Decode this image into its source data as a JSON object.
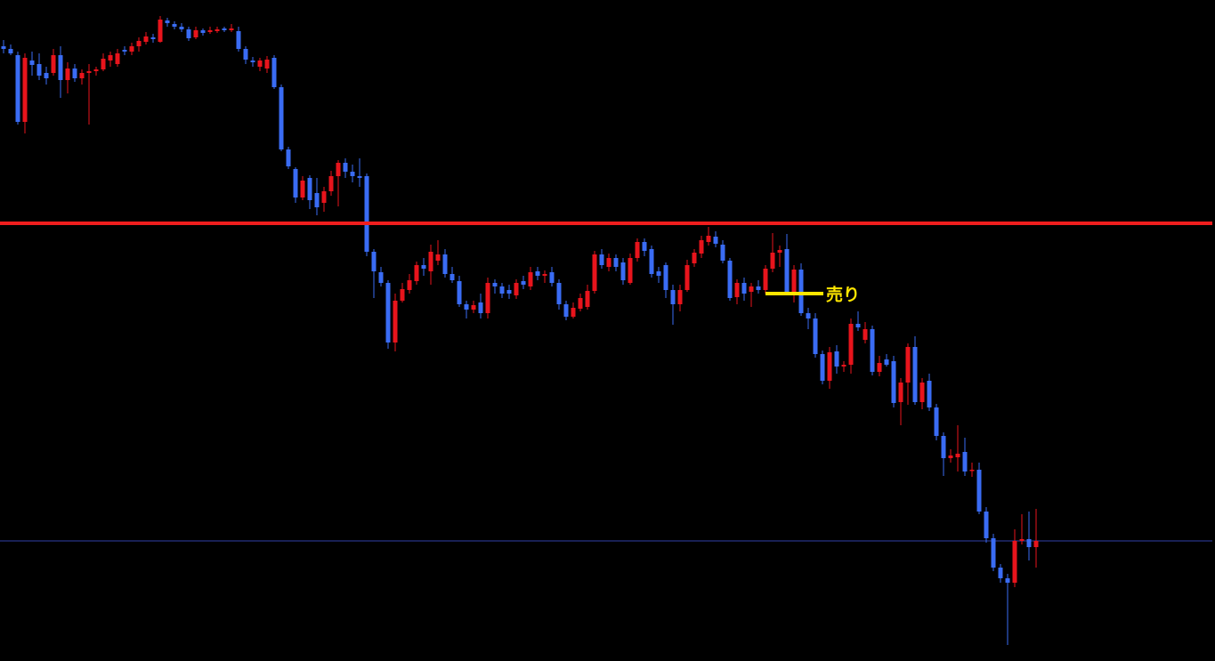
{
  "chart_data": {
    "type": "candlestick",
    "up_color": "#e8141c",
    "down_color": "#3a6cf4",
    "ylim": [
      7,
      750
    ],
    "open": [
      698,
      695,
      688,
      613,
      682,
      678,
      668,
      668,
      688,
      660,
      673,
      662,
      668,
      670,
      672,
      682,
      678,
      694,
      692,
      698,
      703,
      708,
      703,
      727,
      723,
      720,
      717,
      708,
      716,
      714,
      715,
      718,
      716,
      715,
      695,
      682,
      675,
      673,
      685,
      652,
      582,
      560,
      528,
      550,
      533,
      522,
      535,
      552,
      567,
      557,
      552,
      552,
      467,
      444,
      432,
      365,
      412,
      424,
      434,
      452,
      445,
      457,
      464,
      442,
      434,
      408,
      402,
      410,
      398,
      432,
      428,
      424,
      418,
      434,
      428,
      445,
      440,
      444,
      432,
      408,
      394,
      403,
      405,
      423,
      464,
      450,
      460,
      455,
      432,
      460,
      478,
      470,
      445,
      452,
      424,
      408,
      424,
      454,
      465,
      478,
      484,
      475,
      457,
      416,
      432,
      422,
      428,
      424,
      448,
      466,
      470,
      422,
      447,
      398,
      392,
      352,
      322,
      355,
      338,
      340,
      386,
      368,
      380,
      332,
      346,
      344,
      298,
      320,
      360,
      298,
      322,
      292,
      260,
      235,
      236,
      242,
      222,
      222,
      175,
      145,
      112,
      100,
      95,
      142,
      144,
      135
    ],
    "high": [
      705,
      700,
      692,
      690,
      692,
      690,
      675,
      695,
      698,
      680,
      678,
      672,
      678,
      675,
      690,
      692,
      695,
      698,
      702,
      708,
      714,
      712,
      732,
      730,
      726,
      724,
      720,
      720,
      718,
      720,
      720,
      720,
      723,
      720,
      698,
      686,
      685,
      687,
      688,
      655,
      585,
      562,
      552,
      553,
      550,
      540,
      558,
      570,
      572,
      565,
      572,
      555,
      470,
      450,
      435,
      420,
      432,
      442,
      456,
      460,
      475,
      480,
      470,
      450,
      440,
      412,
      412,
      420,
      438,
      436,
      432,
      430,
      436,
      440,
      450,
      450,
      446,
      450,
      436,
      412,
      410,
      420,
      430,
      468,
      470,
      465,
      464,
      460,
      465,
      482,
      482,
      474,
      450,
      455,
      430,
      430,
      458,
      470,
      485,
      495,
      490,
      480,
      460,
      436,
      438,
      432,
      435,
      452,
      488,
      474,
      487,
      452,
      454,
      404,
      398,
      356,
      360,
      362,
      344,
      392,
      400,
      388,
      384,
      350,
      352,
      350,
      325,
      364,
      372,
      325,
      330,
      296,
      264,
      245,
      272,
      258,
      230,
      230,
      180,
      150,
      116,
      105,
      155,
      172,
      175,
      178
    ],
    "low": [
      690,
      688,
      610,
      600,
      665,
      660,
      655,
      665,
      640,
      645,
      658,
      655,
      610,
      665,
      670,
      675,
      675,
      688,
      688,
      692,
      700,
      702,
      702,
      720,
      717,
      714,
      704,
      706,
      710,
      712,
      713,
      714,
      714,
      692,
      678,
      675,
      670,
      668,
      650,
      580,
      560,
      522,
      525,
      515,
      508,
      512,
      530,
      518,
      550,
      545,
      540,
      462,
      415,
      428,
      358,
      355,
      410,
      420,
      430,
      440,
      430,
      452,
      438,
      432,
      405,
      392,
      398,
      392,
      392,
      420,
      415,
      414,
      414,
      425,
      424,
      435,
      432,
      428,
      402,
      390,
      392,
      400,
      402,
      420,
      448,
      445,
      445,
      430,
      430,
      456,
      462,
      438,
      432,
      415,
      385,
      400,
      422,
      450,
      460,
      474,
      472,
      454,
      412,
      408,
      412,
      405,
      420,
      420,
      444,
      450,
      418,
      410,
      395,
      380,
      348,
      318,
      313,
      330,
      332,
      330,
      378,
      364,
      328,
      327,
      338,
      292,
      272,
      295,
      295,
      290,
      288,
      255,
      215,
      230,
      220,
      215,
      214,
      172,
      140,
      108,
      95,
      25,
      90,
      138,
      120,
      112
    ],
    "close": [
      695,
      690,
      613,
      685,
      677,
      665,
      662,
      688,
      660,
      673,
      662,
      668,
      670,
      672,
      684,
      688,
      690,
      692,
      698,
      704,
      709,
      706,
      728,
      724,
      720,
      717,
      707,
      716,
      713,
      716,
      717,
      716,
      718,
      695,
      683,
      680,
      682,
      683,
      652,
      582,
      563,
      528,
      547,
      525,
      517,
      535,
      552,
      567,
      557,
      552,
      550,
      467,
      445,
      432,
      365,
      412,
      425,
      435,
      452,
      448,
      467,
      464,
      442,
      435,
      408,
      402,
      407,
      398,
      432,
      428,
      420,
      420,
      432,
      430,
      444,
      440,
      442,
      432,
      408,
      394,
      404,
      415,
      423,
      464,
      452,
      460,
      450,
      435,
      460,
      478,
      468,
      442,
      440,
      424,
      408,
      424,
      452,
      466,
      480,
      485,
      476,
      457,
      415,
      432,
      420,
      428,
      424,
      448,
      466,
      469,
      422,
      447,
      398,
      392,
      352,
      322,
      354,
      338,
      340,
      386,
      382,
      380,
      332,
      342,
      340,
      297,
      320,
      360,
      298,
      320,
      292,
      260,
      235,
      238,
      240,
      220,
      222,
      175,
      145,
      112,
      100,
      95,
      142,
      144,
      135,
      142
    ],
    "levels": [
      {
        "value": 499,
        "color": "#f01e1e"
      },
      {
        "value": 142,
        "color": "#2f3fa8"
      }
    ],
    "annotation": {
      "text": "売り",
      "value": 420,
      "color": "#ffe600"
    }
  }
}
